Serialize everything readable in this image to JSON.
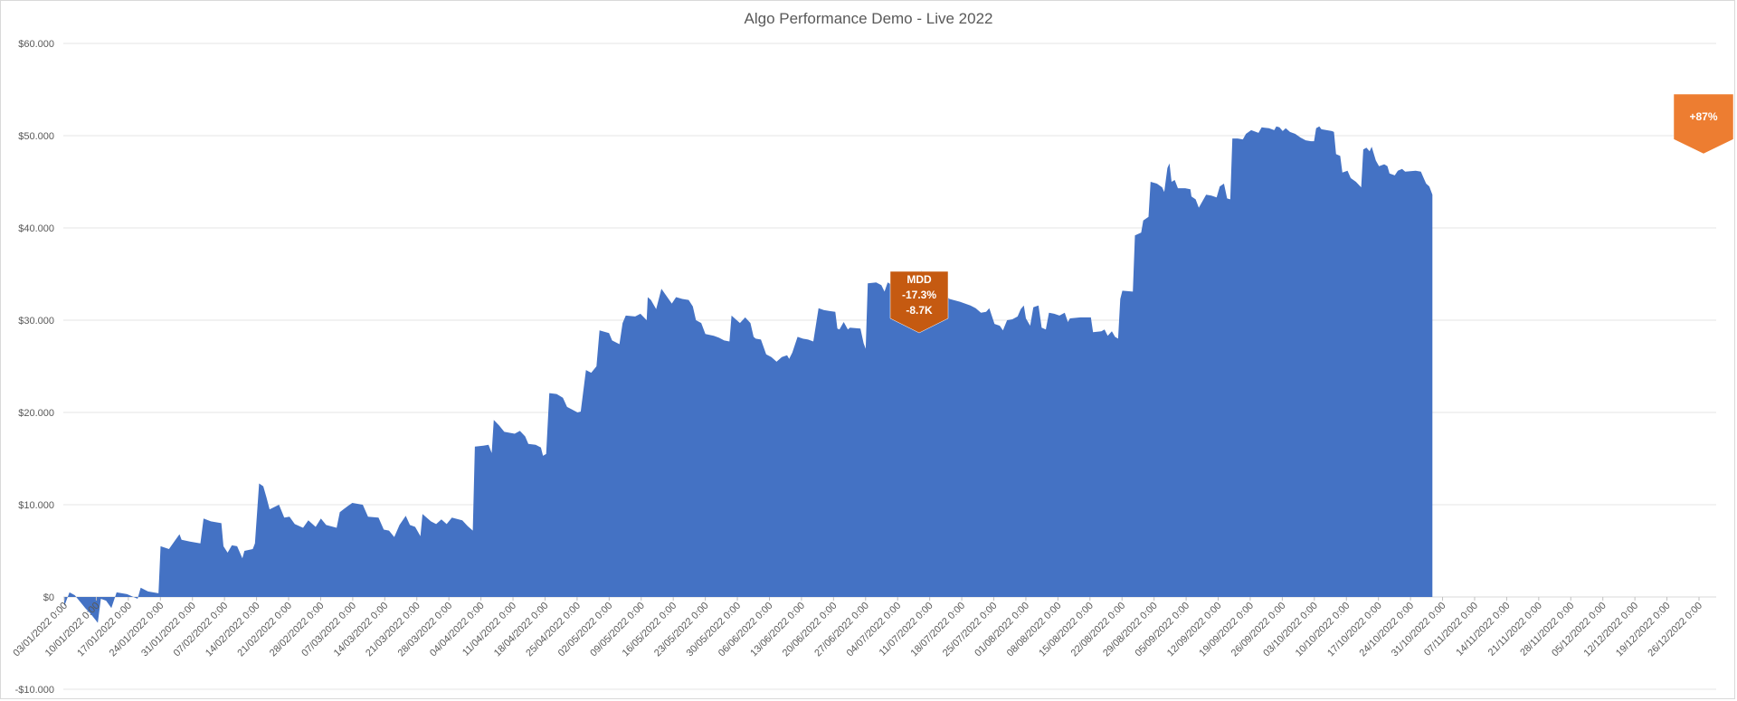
{
  "chart_data": {
    "type": "area",
    "title": "Algo Performance Demo - Live 2022",
    "xlabel": "",
    "ylabel": "",
    "ylim": [
      -10000,
      60000
    ],
    "yticks": [
      {
        "value": 60000,
        "label": "$60.000"
      },
      {
        "value": 50000,
        "label": "$50.000"
      },
      {
        "value": 40000,
        "label": "$40.000"
      },
      {
        "value": 30000,
        "label": "$30.000"
      },
      {
        "value": 20000,
        "label": "$20.000"
      },
      {
        "value": 10000,
        "label": "$10.000"
      },
      {
        "value": 0,
        "label": "$0"
      },
      {
        "value": -10000,
        "label": "-$10.000"
      }
    ],
    "x_tick_labels": [
      "03/01/2022 0:00",
      "10/01/2022 0:00",
      "17/01/2022 0:00",
      "24/01/2022 0:00",
      "31/01/2022 0:00",
      "07/02/2022 0:00",
      "14/02/2022 0:00",
      "21/02/2022 0:00",
      "28/02/2022 0:00",
      "07/03/2022 0:00",
      "14/03/2022 0:00",
      "21/03/2022 0:00",
      "28/03/2022 0:00",
      "04/04/2022 0:00",
      "11/04/2022 0:00",
      "18/04/2022 0:00",
      "25/04/2022 0:00",
      "02/05/2022 0:00",
      "09/05/2022 0:00",
      "16/05/2022 0:00",
      "23/05/2022 0:00",
      "30/05/2022 0:00",
      "06/06/2022 0:00",
      "13/06/2022 0:00",
      "20/06/2022 0:00",
      "27/06/2022 0:00",
      "04/07/2022 0:00",
      "11/07/2022 0:00",
      "18/07/2022 0:00",
      "25/07/2022 0:00",
      "01/08/2022 0:00",
      "08/08/2022 0:00",
      "15/08/2022 0:00",
      "22/08/2022 0:00",
      "29/08/2022 0:00",
      "05/09/2022 0:00",
      "12/09/2022 0:00",
      "19/09/2022 0:00",
      "26/09/2022 0:00",
      "03/10/2022 0:00",
      "10/10/2022 0:00",
      "17/10/2022 0:00",
      "24/10/2022 0:00",
      "31/10/2022 0:00",
      "07/11/2022 0:00",
      "14/11/2022 0:00",
      "21/11/2022 0:00",
      "28/11/2022 0:00",
      "05/12/2022 0:00",
      "12/12/2022 0:00",
      "19/12/2022 0:00",
      "26/12/2022 0:00"
    ],
    "series": [
      {
        "color": "#4472c4",
        "points": [
          [
            0,
            -1000
          ],
          [
            0.5,
            500
          ],
          [
            1,
            200
          ],
          [
            1.5,
            -500
          ],
          [
            2,
            -1200
          ],
          [
            2.5,
            -1800
          ],
          [
            3,
            -2500
          ],
          [
            3.2,
            -2800
          ],
          [
            3.5,
            -200
          ],
          [
            4,
            -400
          ],
          [
            4.5,
            -1200
          ],
          [
            5,
            500
          ],
          [
            6,
            300
          ],
          [
            7,
            -200
          ],
          [
            7.3,
            1000
          ],
          [
            8,
            600
          ],
          [
            9,
            400
          ],
          [
            9.2,
            5500
          ],
          [
            10,
            5200
          ],
          [
            10.5,
            6000
          ],
          [
            11,
            6800
          ],
          [
            11.2,
            6200
          ],
          [
            12,
            6000
          ],
          [
            13,
            5800
          ],
          [
            13.3,
            8500
          ],
          [
            14,
            8200
          ],
          [
            15,
            8000
          ],
          [
            15.2,
            5500
          ],
          [
            15.6,
            4800
          ],
          [
            16,
            5600
          ],
          [
            16.5,
            5500
          ],
          [
            17,
            4200
          ],
          [
            17.2,
            5000
          ],
          [
            18,
            5200
          ],
          [
            18.2,
            5800
          ],
          [
            18.6,
            12300
          ],
          [
            19,
            12000
          ],
          [
            19.3,
            10800
          ],
          [
            19.6,
            9500
          ],
          [
            20.5,
            10000
          ],
          [
            21,
            8600
          ],
          [
            21.5,
            8700
          ],
          [
            22,
            7900
          ],
          [
            22.8,
            7500
          ],
          [
            23.3,
            8300
          ],
          [
            24,
            7600
          ],
          [
            24.5,
            8500
          ],
          [
            25,
            7800
          ],
          [
            26,
            7500
          ],
          [
            26.3,
            9200
          ],
          [
            27,
            9800
          ],
          [
            27.5,
            10200
          ],
          [
            28.5,
            10000
          ],
          [
            29,
            8700
          ],
          [
            30,
            8600
          ],
          [
            30.5,
            7300
          ],
          [
            31,
            7200
          ],
          [
            31.5,
            6500
          ],
          [
            32,
            7800
          ],
          [
            32.6,
            8800
          ],
          [
            33,
            7800
          ],
          [
            33.5,
            7600
          ],
          [
            34,
            6600
          ],
          [
            34.2,
            9000
          ],
          [
            35,
            8200
          ],
          [
            35.5,
            7900
          ],
          [
            36,
            8400
          ],
          [
            36.5,
            7900
          ],
          [
            37,
            8600
          ],
          [
            38,
            8300
          ],
          [
            38.5,
            7700
          ],
          [
            39,
            7200
          ],
          [
            39.2,
            16300
          ],
          [
            40,
            16400
          ],
          [
            40.5,
            16500
          ],
          [
            40.8,
            15600
          ],
          [
            41,
            19200
          ],
          [
            41.5,
            18600
          ],
          [
            42,
            17900
          ],
          [
            43,
            17700
          ],
          [
            43.5,
            18000
          ],
          [
            44,
            17400
          ],
          [
            44.3,
            16600
          ],
          [
            45,
            16500
          ],
          [
            45.5,
            16200
          ],
          [
            45.7,
            15300
          ],
          [
            46,
            15500
          ],
          [
            46.3,
            22100
          ],
          [
            47,
            22000
          ],
          [
            47.6,
            21600
          ],
          [
            48,
            20600
          ],
          [
            48.5,
            20300
          ],
          [
            49,
            20000
          ],
          [
            49.3,
            20100
          ],
          [
            49.8,
            24600
          ],
          [
            50.3,
            24300
          ],
          [
            50.8,
            25000
          ],
          [
            51.1,
            28900
          ],
          [
            52,
            28600
          ],
          [
            52.3,
            27800
          ],
          [
            53,
            27400
          ],
          [
            53.3,
            29700
          ],
          [
            53.6,
            30500
          ],
          [
            54.5,
            30400
          ],
          [
            55,
            30700
          ],
          [
            55.6,
            30000
          ],
          [
            55.7,
            32500
          ],
          [
            56,
            32200
          ],
          [
            56.5,
            31200
          ],
          [
            57,
            33400
          ],
          [
            57.5,
            32600
          ],
          [
            58,
            31800
          ],
          [
            58.4,
            32500
          ],
          [
            59,
            32300
          ],
          [
            59.6,
            32200
          ],
          [
            60,
            31500
          ],
          [
            60.3,
            30000
          ],
          [
            60.8,
            29700
          ],
          [
            61.2,
            28500
          ],
          [
            62,
            28300
          ],
          [
            62.5,
            28100
          ],
          [
            63,
            27800
          ],
          [
            63.5,
            27700
          ],
          [
            63.7,
            30500
          ],
          [
            64,
            30200
          ],
          [
            64.5,
            29700
          ],
          [
            65,
            30300
          ],
          [
            65.5,
            29700
          ],
          [
            65.8,
            28200
          ],
          [
            66,
            28000
          ],
          [
            66.5,
            27900
          ],
          [
            67,
            26300
          ],
          [
            67.5,
            26000
          ],
          [
            68,
            25500
          ],
          [
            68.5,
            26000
          ],
          [
            69,
            26200
          ],
          [
            69.2,
            25800
          ],
          [
            69.5,
            26500
          ],
          [
            70,
            28200
          ],
          [
            70.5,
            28000
          ],
          [
            71,
            27900
          ],
          [
            71.5,
            27700
          ],
          [
            72,
            31300
          ],
          [
            72.5,
            31100
          ],
          [
            73,
            31000
          ],
          [
            73.6,
            30900
          ],
          [
            73.8,
            29100
          ],
          [
            74,
            29000
          ],
          [
            74.4,
            29800
          ],
          [
            74.8,
            29000
          ],
          [
            75,
            29200
          ],
          [
            76,
            29100
          ],
          [
            76.3,
            27500
          ],
          [
            76.5,
            26900
          ],
          [
            76.7,
            34000
          ],
          [
            77.5,
            34100
          ],
          [
            78,
            33800
          ],
          [
            78.3,
            33100
          ],
          [
            78.6,
            34100
          ],
          [
            79.2,
            33700
          ],
          [
            79.5,
            34600
          ],
          [
            80,
            34500
          ],
          [
            80.5,
            34400
          ],
          [
            81,
            34200
          ],
          [
            81.5,
            33800
          ],
          [
            81.8,
            35400
          ],
          [
            82,
            34500
          ],
          [
            82.3,
            33300
          ],
          [
            82.6,
            33000
          ],
          [
            83.2,
            32300
          ],
          [
            83.8,
            31800
          ],
          [
            84,
            32800
          ],
          [
            84.5,
            32300
          ],
          [
            85.5,
            32000
          ],
          [
            86.5,
            31600
          ],
          [
            87,
            31300
          ],
          [
            87.5,
            30800
          ],
          [
            88,
            30900
          ],
          [
            88.3,
            31300
          ],
          [
            88.8,
            29600
          ],
          [
            89.3,
            29400
          ],
          [
            89.6,
            28900
          ],
          [
            90,
            30000
          ],
          [
            90.5,
            30100
          ],
          [
            91,
            30400
          ],
          [
            91.3,
            31200
          ],
          [
            91.6,
            31600
          ],
          [
            91.8,
            30200
          ],
          [
            92.2,
            29400
          ],
          [
            92.5,
            31400
          ],
          [
            93,
            31600
          ],
          [
            93.3,
            29200
          ],
          [
            93.7,
            29000
          ],
          [
            94,
            30800
          ],
          [
            94.5,
            30700
          ],
          [
            95,
            30500
          ],
          [
            95.5,
            30800
          ],
          [
            95.8,
            29800
          ],
          [
            96,
            30200
          ],
          [
            97,
            30300
          ],
          [
            98,
            30300
          ],
          [
            98.2,
            28700
          ],
          [
            99,
            28800
          ],
          [
            99.3,
            29000
          ],
          [
            99.6,
            28300
          ],
          [
            100,
            28800
          ],
          [
            100.3,
            28200
          ],
          [
            100.6,
            28000
          ],
          [
            100.8,
            32300
          ],
          [
            101,
            33200
          ],
          [
            102,
            33100
          ],
          [
            102.2,
            39200
          ],
          [
            102.8,
            39500
          ],
          [
            103,
            40800
          ],
          [
            103.5,
            41200
          ],
          [
            103.7,
            45000
          ],
          [
            104.3,
            44800
          ],
          [
            104.8,
            44400
          ],
          [
            105,
            43900
          ],
          [
            105.3,
            46500
          ],
          [
            105.5,
            47000
          ],
          [
            105.7,
            45000
          ],
          [
            106,
            45200
          ],
          [
            106.3,
            44300
          ],
          [
            107,
            44300
          ],
          [
            107.5,
            44200
          ],
          [
            107.6,
            43400
          ],
          [
            108,
            43100
          ],
          [
            108.3,
            42200
          ],
          [
            109,
            43600
          ],
          [
            109.5,
            43500
          ],
          [
            110,
            43300
          ],
          [
            110.3,
            44500
          ],
          [
            110.7,
            44800
          ],
          [
            111,
            43200
          ],
          [
            111.3,
            43100
          ],
          [
            111.5,
            49700
          ],
          [
            112,
            49700
          ],
          [
            112.5,
            49600
          ],
          [
            112.8,
            50200
          ],
          [
            113.3,
            50600
          ],
          [
            114,
            50300
          ],
          [
            114.3,
            50900
          ],
          [
            115,
            50800
          ],
          [
            115.5,
            50600
          ],
          [
            115.7,
            51000
          ],
          [
            116,
            50900
          ],
          [
            116.3,
            50500
          ],
          [
            116.6,
            50800
          ],
          [
            117,
            50400
          ],
          [
            117.5,
            50200
          ],
          [
            118,
            49800
          ],
          [
            118.5,
            49500
          ],
          [
            119,
            49400
          ],
          [
            119.3,
            49400
          ],
          [
            119.5,
            50800
          ],
          [
            119.8,
            51000
          ],
          [
            120,
            50700
          ],
          [
            121,
            50500
          ],
          [
            121.2,
            50400
          ],
          [
            121.4,
            48000
          ],
          [
            121.8,
            47800
          ],
          [
            122,
            46000
          ],
          [
            122.5,
            46200
          ],
          [
            122.8,
            45400
          ],
          [
            123.3,
            45000
          ],
          [
            123.8,
            44400
          ],
          [
            124,
            48500
          ],
          [
            124.3,
            48700
          ],
          [
            124.6,
            48300
          ],
          [
            124.8,
            48800
          ],
          [
            125.2,
            47300
          ],
          [
            125.5,
            46700
          ],
          [
            126,
            46900
          ],
          [
            126.3,
            46700
          ],
          [
            126.5,
            45900
          ],
          [
            127,
            45700
          ],
          [
            127.3,
            46200
          ],
          [
            127.7,
            46400
          ],
          [
            128,
            46100
          ],
          [
            129,
            46200
          ],
          [
            129.5,
            46100
          ],
          [
            129.8,
            45300
          ],
          [
            130,
            44800
          ],
          [
            130.3,
            44500
          ],
          [
            130.6,
            43600
          ]
        ]
      }
    ],
    "annotations": [
      {
        "type": "callout-down",
        "lines": [
          "MDD",
          "-17.3%",
          "-8.7K"
        ],
        "color": "#c55a11",
        "x": 67.5
      },
      {
        "type": "callout-down",
        "lines": [
          "+87%"
        ],
        "color": "#ed7d31",
        "x": 130.0
      }
    ]
  }
}
